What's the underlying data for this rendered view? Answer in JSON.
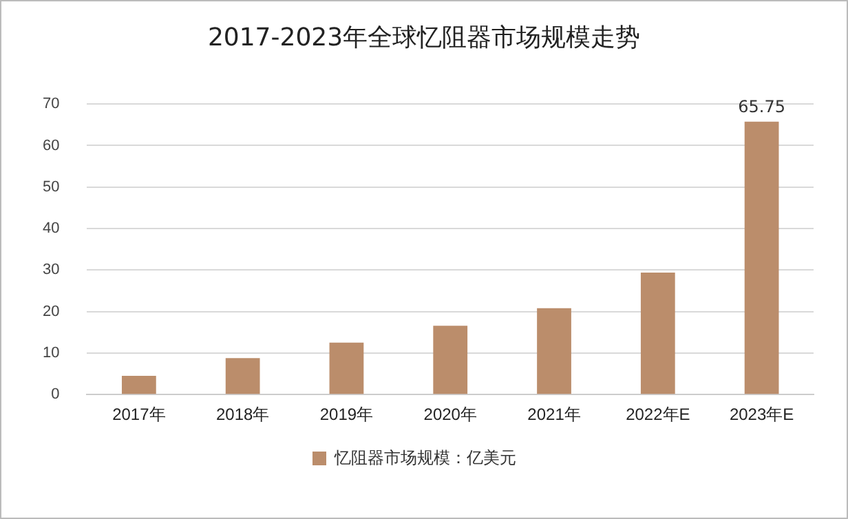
{
  "chart_data": {
    "type": "bar",
    "title": "2017-2023年全球忆阻器市场规模走势",
    "categories": [
      "2017年",
      "2018年",
      "2019年",
      "2020年",
      "2021年",
      "2022年E",
      "2023年E"
    ],
    "series": [
      {
        "name": "忆阻器市场规模：亿美元",
        "color": "#bb8d6b",
        "values": [
          4.5,
          8.8,
          12.5,
          16.6,
          20.8,
          29.4,
          65.75
        ],
        "value_labels": [
          null,
          null,
          null,
          null,
          null,
          null,
          "65.75"
        ]
      }
    ],
    "ylim": [
      0,
      70
    ],
    "yticks": [
      0,
      10,
      20,
      30,
      40,
      50,
      60,
      70
    ],
    "grid": "y",
    "legend": "bottom"
  }
}
